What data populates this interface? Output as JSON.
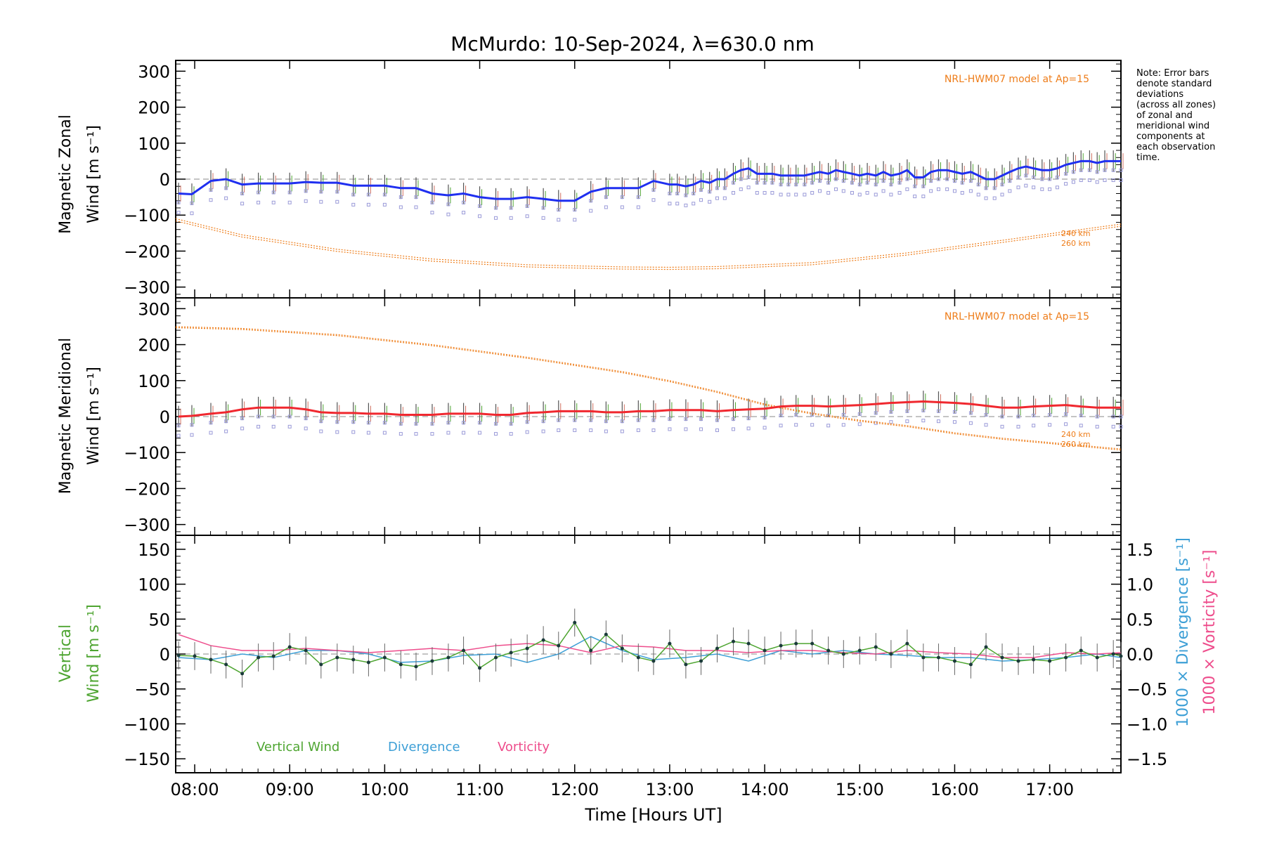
{
  "title": "McMurdo: 10-Sep-2024, λ=630.0 nm",
  "note_lines": [
    "Note: Error bars",
    "denote standard",
    "deviations",
    "(across all zones)",
    "of zonal and",
    "meridional wind",
    "components at",
    "each observation",
    "time."
  ],
  "colors": {
    "zonal": "#1f2ff0",
    "meridional": "#f0282f",
    "model": "#ee7d1a",
    "vertical": "#4ea531",
    "divergence": "#3d9fd6",
    "vorticity": "#ee4d8c",
    "scatter": "#9a9ad8",
    "axis": "#000000",
    "zero": "#888888"
  },
  "xaxis": {
    "label": "Time [Hours UT]",
    "range": [
      7.8,
      17.75
    ],
    "ticks": [
      8,
      9,
      10,
      11,
      12,
      13,
      14,
      15,
      16,
      17
    ],
    "tick_labels": [
      "08:00",
      "09:00",
      "10:00",
      "11:00",
      "12:00",
      "13:00",
      "14:00",
      "15:00",
      "16:00",
      "17:00"
    ]
  },
  "chart_data": [
    {
      "type": "line",
      "ylabel_line1": "Magnetic Zonal",
      "ylabel_line2": "Wind [m s⁻¹]",
      "ylim": [
        -330,
        330
      ],
      "yticks": [
        -300,
        -200,
        -100,
        0,
        100,
        200,
        300
      ],
      "model_label": "NRL-HWM07 model at Ap=15",
      "model_alt_labels": [
        "240 km",
        "260 km"
      ],
      "series": [
        {
          "x": [
            7.83,
            7.97,
            8.17,
            8.33,
            8.5,
            8.67,
            8.83,
            9.0,
            9.17,
            9.33,
            9.5,
            9.67,
            9.83,
            10.0,
            10.17,
            10.33,
            10.5,
            10.67,
            10.83,
            11.0,
            11.17,
            11.33,
            11.5,
            11.67,
            11.83,
            12.0,
            12.17,
            12.33,
            12.5,
            12.67,
            12.83,
            13.0,
            13.08,
            13.17,
            13.25,
            13.33,
            13.42,
            13.5,
            13.58,
            13.67,
            13.75,
            13.83,
            13.92,
            14.0,
            14.08,
            14.17,
            14.25,
            14.33,
            14.42,
            14.5,
            14.58,
            14.67,
            14.75,
            14.83,
            14.92,
            15.0,
            15.08,
            15.17,
            15.25,
            15.33,
            15.42,
            15.5,
            15.58,
            15.67,
            15.75,
            15.83,
            15.92,
            16.0,
            16.08,
            16.17,
            16.25,
            16.33,
            16.42,
            16.5,
            16.58,
            16.67,
            16.75,
            16.83,
            16.92,
            17.0,
            17.08,
            17.17,
            17.25,
            17.33,
            17.42,
            17.5,
            17.58,
            17.67,
            17.75
          ],
          "values": [
            -40,
            -42,
            -5,
            0,
            -15,
            -12,
            -12,
            -12,
            -8,
            -10,
            -10,
            -18,
            -18,
            -18,
            -25,
            -25,
            -40,
            -45,
            -40,
            -50,
            -55,
            -55,
            -50,
            -55,
            -60,
            -60,
            -35,
            -25,
            -25,
            -25,
            -5,
            -15,
            -15,
            -20,
            -15,
            -5,
            -10,
            0,
            0,
            15,
            25,
            30,
            15,
            15,
            15,
            10,
            10,
            10,
            10,
            15,
            20,
            15,
            25,
            20,
            15,
            10,
            15,
            10,
            20,
            10,
            15,
            25,
            5,
            5,
            20,
            25,
            25,
            20,
            15,
            20,
            10,
            0,
            0,
            10,
            20,
            30,
            35,
            30,
            25,
            25,
            30,
            40,
            45,
            50,
            50,
            45,
            50,
            50,
            50
          ]
        }
      ],
      "model": {
        "x": [
          7.8,
          8.5,
          9.5,
          10.5,
          11.5,
          12.5,
          13.0,
          13.5,
          14.5,
          15.5,
          16.5,
          17.75
        ],
        "values": [
          -110,
          -155,
          -195,
          -222,
          -238,
          -244,
          -245,
          -243,
          -232,
          -205,
          -170,
          -125
        ]
      }
    },
    {
      "type": "line",
      "ylabel_line1": "Magnetic Meridional",
      "ylabel_line2": "Wind [m s⁻¹]",
      "ylim": [
        -330,
        330
      ],
      "yticks": [
        -300,
        -200,
        -100,
        0,
        100,
        200,
        300
      ],
      "model_label": "NRL-HWM07 model at Ap=15",
      "model_alt_labels": [
        "240 km",
        "260 km"
      ],
      "series": [
        {
          "x": [
            7.83,
            7.97,
            8.17,
            8.33,
            8.5,
            8.67,
            8.83,
            9.0,
            9.17,
            9.33,
            9.5,
            9.67,
            9.83,
            10.0,
            10.17,
            10.33,
            10.5,
            10.67,
            10.83,
            11.0,
            11.17,
            11.33,
            11.5,
            11.67,
            11.83,
            12.0,
            12.17,
            12.33,
            12.5,
            12.67,
            12.83,
            13.0,
            13.17,
            13.33,
            13.5,
            13.67,
            13.83,
            14.0,
            14.17,
            14.33,
            14.5,
            14.67,
            14.83,
            15.0,
            15.17,
            15.33,
            15.5,
            15.67,
            15.83,
            16.0,
            16.17,
            16.33,
            16.5,
            16.67,
            16.83,
            17.0,
            17.17,
            17.33,
            17.5,
            17.67,
            17.75
          ],
          "values": [
            0,
            2,
            8,
            12,
            20,
            25,
            25,
            25,
            20,
            12,
            10,
            10,
            8,
            8,
            5,
            5,
            5,
            8,
            8,
            8,
            5,
            5,
            10,
            12,
            15,
            15,
            15,
            12,
            12,
            15,
            15,
            18,
            18,
            18,
            15,
            18,
            20,
            22,
            28,
            30,
            30,
            28,
            30,
            32,
            35,
            38,
            40,
            42,
            40,
            38,
            35,
            30,
            25,
            25,
            28,
            30,
            32,
            28,
            25,
            25,
            25
          ]
        }
      ],
      "model": {
        "x": [
          7.8,
          8.5,
          9.5,
          10.5,
          11.5,
          12.5,
          13.0,
          13.5,
          14.0,
          14.5,
          15.0,
          15.5,
          16.0,
          16.5,
          17.0,
          17.75
        ],
        "values": [
          250,
          245,
          228,
          200,
          165,
          125,
          100,
          70,
          35,
          10,
          -10,
          -25,
          -45,
          -60,
          -72,
          -90
        ]
      }
    },
    {
      "type": "line",
      "ylabel_line1": "Vertical",
      "ylabel_line2": "Wind [m s⁻¹]",
      "ylim": [
        -170,
        170
      ],
      "yticks": [
        -150,
        -100,
        -50,
        0,
        50,
        100,
        150
      ],
      "y2label_div": "1000 × Divergence [s⁻¹]",
      "y2label_vort": "1000 × Vorticity [s⁻¹]",
      "y2lim": [
        -1.7,
        1.7
      ],
      "y2ticks": [
        -1.5,
        -1.0,
        -0.5,
        0.0,
        0.5,
        1.0,
        1.5
      ],
      "legend": [
        "Vertical Wind",
        "Divergence",
        "Vorticity"
      ],
      "series": [
        {
          "name": "Vertical Wind",
          "x": [
            7.83,
            8.0,
            8.17,
            8.33,
            8.5,
            8.67,
            8.83,
            9.0,
            9.17,
            9.33,
            9.5,
            9.67,
            9.83,
            10.0,
            10.17,
            10.33,
            10.5,
            10.67,
            10.83,
            11.0,
            11.17,
            11.33,
            11.5,
            11.67,
            11.83,
            12.0,
            12.17,
            12.33,
            12.5,
            12.67,
            12.83,
            13.0,
            13.17,
            13.33,
            13.5,
            13.67,
            13.83,
            14.0,
            14.17,
            14.33,
            14.5,
            14.67,
            14.83,
            15.0,
            15.17,
            15.33,
            15.5,
            15.67,
            15.83,
            16.0,
            16.17,
            16.33,
            16.5,
            16.67,
            16.83,
            17.0,
            17.17,
            17.33,
            17.5,
            17.67,
            17.75
          ],
          "values": [
            -2,
            -3,
            -8,
            -15,
            -28,
            -5,
            -3,
            10,
            5,
            -15,
            -5,
            -8,
            -12,
            -5,
            -15,
            -18,
            -10,
            -5,
            5,
            -20,
            -5,
            2,
            8,
            20,
            12,
            45,
            5,
            28,
            8,
            -5,
            -10,
            15,
            -15,
            -10,
            8,
            18,
            15,
            5,
            12,
            15,
            15,
            5,
            0,
            5,
            10,
            0,
            15,
            -5,
            -5,
            -10,
            -15,
            10,
            -5,
            -10,
            -8,
            -10,
            -5,
            5,
            -5,
            0,
            -3
          ]
        },
        {
          "name": "Divergence",
          "x": [
            7.83,
            8.17,
            8.5,
            8.83,
            9.17,
            9.5,
            9.83,
            10.17,
            10.5,
            10.83,
            11.17,
            11.5,
            11.83,
            12.17,
            12.5,
            12.83,
            13.17,
            13.5,
            13.83,
            14.17,
            14.5,
            14.83,
            15.17,
            15.5,
            15.83,
            16.17,
            16.5,
            16.83,
            17.17,
            17.5,
            17.75
          ],
          "values": [
            -0.05,
            -0.08,
            0.0,
            -0.05,
            0.05,
            0.05,
            0.0,
            -0.12,
            -0.1,
            -0.02,
            0.0,
            -0.12,
            0.0,
            0.25,
            0.05,
            -0.08,
            -0.05,
            0.0,
            -0.1,
            0.05,
            0.0,
            0.05,
            0.0,
            -0.02,
            -0.05,
            -0.05,
            -0.1,
            -0.08,
            -0.05,
            0.0,
            -0.05
          ]
        },
        {
          "name": "Vorticity",
          "x": [
            7.83,
            8.17,
            8.5,
            8.83,
            9.17,
            9.5,
            9.83,
            10.17,
            10.5,
            10.83,
            11.17,
            11.5,
            11.83,
            12.17,
            12.5,
            12.83,
            13.17,
            13.5,
            13.83,
            14.17,
            14.5,
            14.83,
            15.17,
            15.5,
            15.83,
            16.17,
            16.5,
            16.83,
            17.17,
            17.5,
            17.75
          ],
          "values": [
            0.28,
            0.12,
            0.05,
            0.05,
            0.08,
            0.05,
            0.02,
            0.05,
            0.08,
            0.05,
            0.12,
            0.15,
            0.12,
            0.02,
            0.12,
            0.1,
            0.05,
            0.05,
            0.02,
            0.05,
            0.05,
            0.02,
            0.0,
            0.05,
            0.02,
            0.0,
            -0.05,
            -0.05,
            0.02,
            0.0,
            0.02
          ]
        }
      ]
    }
  ]
}
